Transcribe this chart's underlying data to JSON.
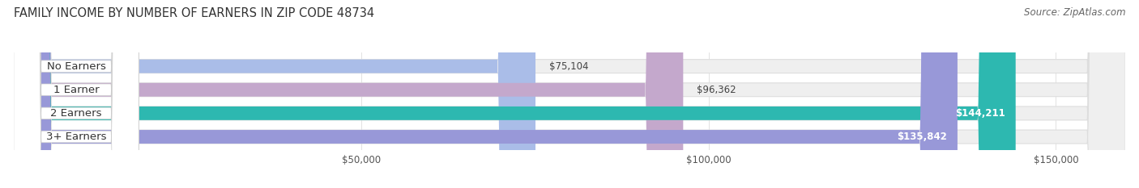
{
  "title": "FAMILY INCOME BY NUMBER OF EARNERS IN ZIP CODE 48734",
  "source": "Source: ZipAtlas.com",
  "categories": [
    "No Earners",
    "1 Earner",
    "2 Earners",
    "3+ Earners"
  ],
  "values": [
    75104,
    96362,
    144211,
    135842
  ],
  "bar_colors": [
    "#aabde8",
    "#c4a8cc",
    "#2db8b0",
    "#9898d8"
  ],
  "value_labels": [
    "$75,104",
    "$96,362",
    "$144,211",
    "$135,842"
  ],
  "value_inside": [
    false,
    false,
    true,
    true
  ],
  "xmin": 0,
  "xmax": 160000,
  "xticks": [
    50000,
    100000,
    150000
  ],
  "xtick_labels": [
    "$50,000",
    "$100,000",
    "$150,000"
  ],
  "background_color": "#ffffff",
  "bar_bg_color": "#efefef",
  "bar_border_color": "#dddddd",
  "title_fontsize": 10.5,
  "source_fontsize": 8.5,
  "label_fontsize": 9.5,
  "value_fontsize": 8.5,
  "tick_fontsize": 8.5
}
